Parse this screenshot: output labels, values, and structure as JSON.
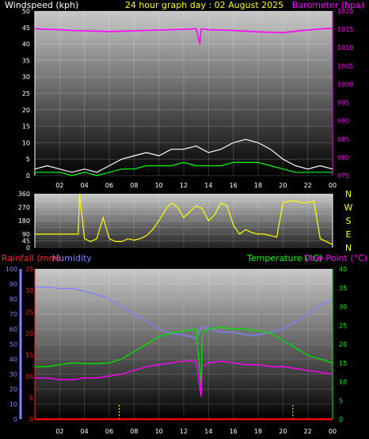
{
  "chart_data": [
    {
      "type": "line",
      "title": "24 hour graph day : 02 August 2025",
      "left_axis_label": "Windspeed (kph)",
      "right_axis_label": "Barometer (hpa)",
      "x_ticks": [
        "02",
        "04",
        "06",
        "08",
        "10",
        "12",
        "14",
        "16",
        "18",
        "20",
        "22",
        "00"
      ],
      "left_ylim": [
        0,
        50
      ],
      "left_ticks": [
        0,
        5,
        10,
        15,
        20,
        25,
        30,
        35,
        40,
        45,
        50
      ],
      "right_ylim": [
        975,
        1020
      ],
      "right_ticks": [
        975,
        980,
        985,
        990,
        995,
        1000,
        1005,
        1010,
        1015,
        1020
      ],
      "grid": true,
      "series": [
        {
          "color": "#ff00ff",
          "axis": "right",
          "x": [
            0,
            1,
            2,
            3,
            4,
            5,
            6,
            7,
            8,
            9,
            10,
            11,
            12,
            13,
            13.3,
            13.4,
            13.6,
            14,
            15,
            16,
            17,
            18,
            19,
            20,
            21,
            22,
            23,
            24
          ],
          "values": [
            1015.2,
            1015,
            1014.9,
            1014.7,
            1014.6,
            1014.5,
            1014.4,
            1014.5,
            1014.6,
            1014.7,
            1014.8,
            1014.9,
            1015,
            1015.2,
            1011,
            1015.1,
            1015.1,
            1014.9,
            1014.8,
            1014.7,
            1014.5,
            1014.3,
            1014.2,
            1014.1,
            1014.5,
            1014.8,
            1015.1,
            1015.3
          ]
        },
        {
          "color": "#ffffff",
          "axis": "left",
          "x": [
            0,
            1,
            2,
            3,
            4,
            5,
            6,
            7,
            8,
            9,
            10,
            11,
            12,
            13,
            14,
            15,
            16,
            17,
            18,
            19,
            20,
            21,
            22,
            23,
            24
          ],
          "values": [
            2,
            3,
            2,
            1,
            2,
            1,
            3,
            5,
            6,
            7,
            6,
            8,
            8,
            9,
            7,
            8,
            10,
            11,
            10,
            8,
            5,
            3,
            2,
            3,
            2
          ]
        },
        {
          "color": "#00ff00",
          "axis": "left",
          "x": [
            0,
            1,
            2,
            3,
            4,
            5,
            6,
            7,
            8,
            9,
            10,
            11,
            12,
            13,
            14,
            15,
            16,
            17,
            18,
            19,
            20,
            21,
            22,
            23,
            24
          ],
          "values": [
            1,
            1,
            1,
            0,
            1,
            0,
            1,
            2,
            2,
            3,
            3,
            3,
            4,
            3,
            3,
            3,
            4,
            4,
            4,
            3,
            2,
            1,
            1,
            1,
            1
          ]
        }
      ]
    },
    {
      "type": "scatter",
      "left_ylim": [
        0,
        360
      ],
      "left_ticks": [
        0,
        45,
        90,
        135,
        180,
        225,
        270,
        315,
        360
      ],
      "compass": [
        "N",
        "W",
        "S",
        "E",
        "N"
      ],
      "x_ticks": [
        "02",
        "04",
        "06",
        "08",
        "10",
        "12",
        "14",
        "16",
        "18",
        "20",
        "22",
        "00"
      ],
      "series": [
        {
          "color": "#ffff00",
          "x": [
            0,
            0.5,
            1,
            1.5,
            2,
            2.5,
            3,
            3.5,
            3.6,
            4,
            4.5,
            5,
            5.5,
            6,
            6.5,
            7,
            7.5,
            8,
            8.5,
            9,
            9.5,
            10,
            10.5,
            11,
            11.5,
            12,
            12.5,
            13,
            13.5,
            14,
            14.5,
            15,
            15.5,
            16,
            16.5,
            17,
            17.5,
            18,
            18.5,
            19,
            19.5,
            20,
            20.5,
            21,
            21.5,
            22,
            22.5,
            23,
            23.5,
            24
          ],
          "values": [
            90,
            90,
            90,
            90,
            90,
            90,
            90,
            90,
            360,
            60,
            40,
            60,
            200,
            60,
            40,
            40,
            60,
            50,
            60,
            80,
            120,
            180,
            250,
            300,
            270,
            200,
            240,
            280,
            260,
            180,
            220,
            300,
            280,
            150,
            90,
            120,
            100,
            90,
            90,
            80,
            70,
            300,
            310,
            310,
            300,
            300,
            310,
            60,
            40,
            20
          ]
        }
      ]
    },
    {
      "type": "line",
      "left_outer_label": "Rainfall (mm)",
      "left_label": "Humidity",
      "right_label_1": "Temperature (°C)",
      "right_label_2": "Dew Point (°C)",
      "rain_ticks": [
        0,
        5,
        10,
        15,
        20,
        25,
        30,
        35
      ],
      "humidity_ticks": [
        0,
        10,
        20,
        30,
        40,
        50,
        60,
        70,
        80,
        90,
        100
      ],
      "temp_ticks": [
        0,
        5,
        10,
        15,
        20,
        25,
        30,
        35,
        40
      ],
      "rain_ylim": [
        0,
        35
      ],
      "humidity_ylim": [
        0,
        100
      ],
      "temp_ylim": [
        0,
        40
      ],
      "x_ticks": [
        "02",
        "04",
        "06",
        "08",
        "10",
        "12",
        "14",
        "16",
        "18",
        "20",
        "22",
        "00"
      ],
      "grid": true,
      "series": [
        {
          "color": "#8080ff",
          "axis": "humidity",
          "x": [
            0,
            1,
            2,
            3,
            4,
            5,
            6,
            7,
            8,
            9,
            10,
            11,
            12,
            13,
            13.4,
            13.5,
            14,
            15,
            16,
            17,
            18,
            19,
            20,
            21,
            22,
            23,
            24
          ],
          "values": [
            88,
            88,
            87,
            87,
            85,
            83,
            80,
            75,
            70,
            65,
            60,
            57,
            56,
            54,
            60,
            62,
            60,
            58,
            58,
            56,
            56,
            58,
            60,
            65,
            70,
            76,
            80
          ]
        },
        {
          "color": "#00e000",
          "axis": "temp",
          "x": [
            0,
            1,
            2,
            3,
            4,
            5,
            6,
            7,
            8,
            9,
            10,
            11,
            12,
            13,
            13.4,
            13.5,
            14,
            15,
            16,
            17,
            18,
            19,
            20,
            21,
            22,
            23,
            24
          ],
          "values": [
            14,
            14,
            14.5,
            15,
            14.8,
            14.8,
            15,
            16,
            18,
            20,
            22,
            23,
            23.5,
            24,
            9,
            23,
            24,
            24.5,
            24,
            24,
            23.5,
            23,
            21,
            19,
            17,
            16,
            15
          ]
        },
        {
          "color": "#ff00ff",
          "axis": "temp",
          "x": [
            0,
            1,
            2,
            3,
            4,
            5,
            6,
            7,
            8,
            9,
            10,
            11,
            12,
            13,
            13.4,
            13.5,
            14,
            15,
            16,
            17,
            18,
            19,
            20,
            21,
            22,
            23,
            24
          ],
          "values": [
            11,
            11,
            10.5,
            10.5,
            11,
            11,
            11.5,
            12,
            13,
            14,
            14.5,
            15,
            15.5,
            15.5,
            6,
            14,
            15,
            15.5,
            15,
            14.5,
            14.5,
            14,
            14,
            13.5,
            13,
            12.5,
            12
          ]
        },
        {
          "color": "#ff0000",
          "axis": "rain",
          "x": [
            0,
            24
          ],
          "values": [
            0,
            0
          ]
        }
      ]
    }
  ]
}
